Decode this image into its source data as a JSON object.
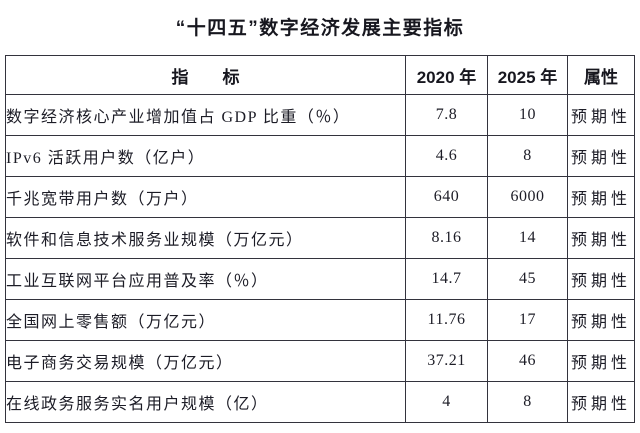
{
  "page": {
    "title": "“十四五”数字经济发展主要指标"
  },
  "table": {
    "headers": {
      "indicator": "指　　标",
      "y2020": "2020 年",
      "y2025": "2025 年",
      "attribute": "属性"
    },
    "rows": [
      {
        "indicator": "数字经济核心产业增加值占 GDP 比重（％）",
        "y2020": "7.8",
        "y2025": "10",
        "attribute": "预期性"
      },
      {
        "indicator": "IPv6 活跃用户数（亿户）",
        "y2020": "4.6",
        "y2025": "8",
        "attribute": "预期性"
      },
      {
        "indicator": "千兆宽带用户数（万户）",
        "y2020": "640",
        "y2025": "6000",
        "attribute": "预期性"
      },
      {
        "indicator": "软件和信息技术服务业规模（万亿元）",
        "y2020": "8.16",
        "y2025": "14",
        "attribute": "预期性"
      },
      {
        "indicator": "工业互联网平台应用普及率（％）",
        "y2020": "14.7",
        "y2025": "45",
        "attribute": "预期性"
      },
      {
        "indicator": "全国网上零售额（万亿元）",
        "y2020": "11.76",
        "y2025": "17",
        "attribute": "预期性"
      },
      {
        "indicator": "电子商务交易规模（万亿元）",
        "y2020": "37.21",
        "y2025": "46",
        "attribute": "预期性"
      },
      {
        "indicator": "在线政务服务实名用户规模（亿）",
        "y2020": "4",
        "y2025": "8",
        "attribute": "预期性"
      }
    ]
  },
  "colors": {
    "background": "#ffffff",
    "text": "#1c1c26",
    "border": "#33333d"
  }
}
